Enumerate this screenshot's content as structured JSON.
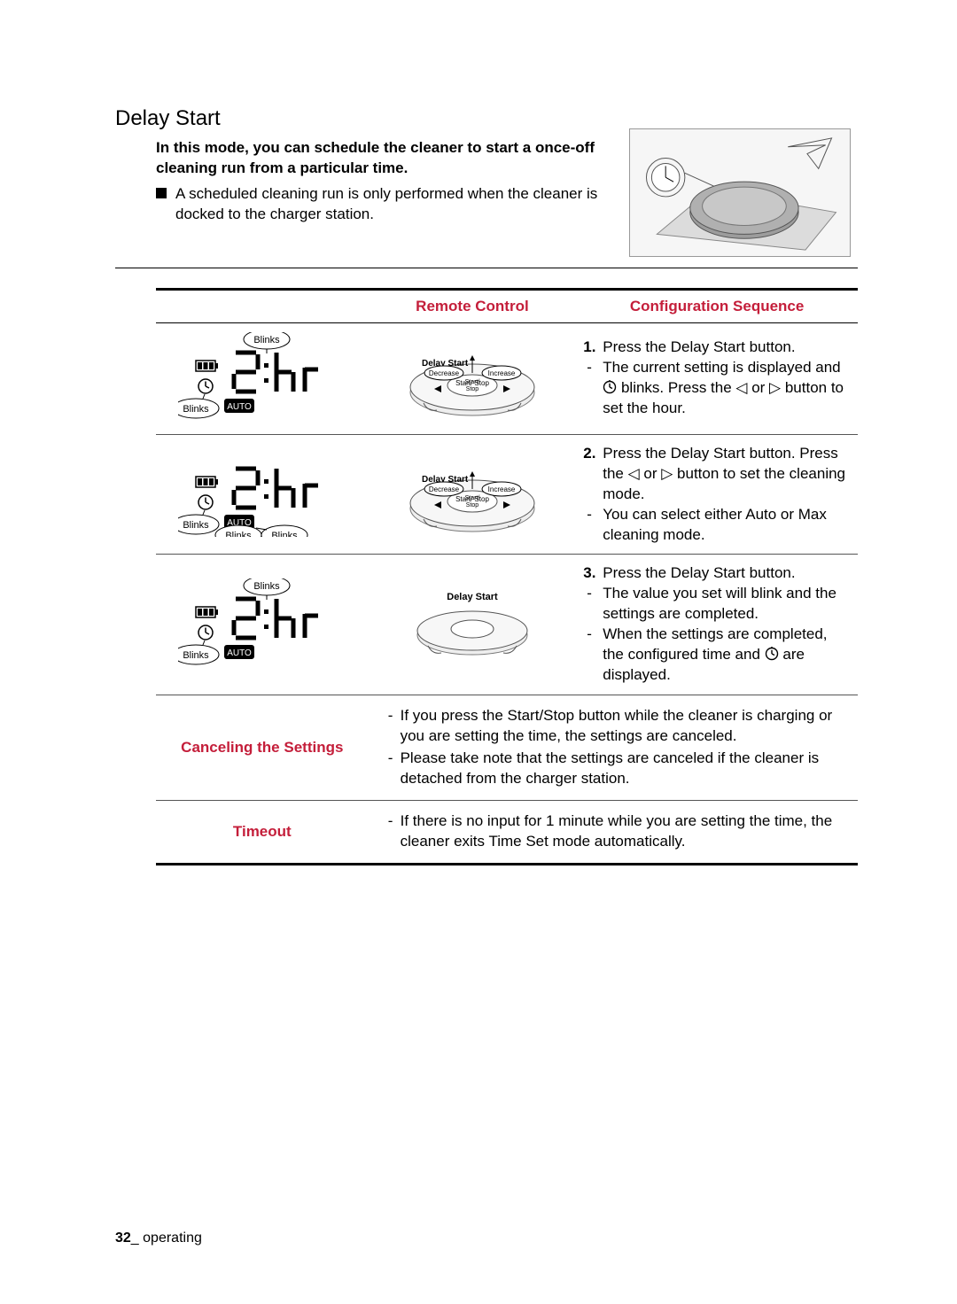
{
  "section_title": "Delay Start",
  "intro_bold": "In this mode, you can schedule the cleaner to start a once-off cleaning run from a particular time.",
  "intro_bullet": "A scheduled cleaning run is only performed when the cleaner is docked to the charger station.",
  "headers": {
    "blank": "",
    "remote": "Remote Control",
    "config": "Configuration Sequence"
  },
  "rows": [
    {
      "display": {
        "hr_blinks": true,
        "mode_blinks": false,
        "clock_blinks": true,
        "digits": "2:hr",
        "mode_label": "AUTO"
      },
      "remote": {
        "type": "full",
        "labels": {
          "ds": "Delay Start",
          "dec": "Decrease",
          "inc": "Increase",
          "ss": "Start/\nStop"
        }
      },
      "config": [
        {
          "kind": "num",
          "n": "1.",
          "text": "Press the Delay Start button."
        },
        {
          "kind": "dash",
          "text_pre": "The current setting is displayed and ",
          "icon": "clock",
          "text_post": " blinks. Press the ◁ or ▷ button to set the hour."
        }
      ]
    },
    {
      "display": {
        "hr_blinks": false,
        "mode_blinks": true,
        "clock_blinks": true,
        "digits": "2:hr",
        "mode_label": "AUTO",
        "extra_blinks_right": true
      },
      "remote": {
        "type": "full",
        "labels": {
          "ds": "Delay Start",
          "dec": "Decrease",
          "inc": "Increase",
          "ss": "Start/\nStop"
        }
      },
      "config": [
        {
          "kind": "num",
          "n": "2.",
          "text": "Press the Delay Start button. Press the ◁ or ▷ button to set the cleaning mode."
        },
        {
          "kind": "dash",
          "text": "You can select either Auto or Max cleaning mode."
        }
      ]
    },
    {
      "display": {
        "hr_blinks": true,
        "mode_blinks": false,
        "clock_blinks": true,
        "digits": "2:hr",
        "mode_label": "AUTO"
      },
      "remote": {
        "type": "simple",
        "labels": {
          "ds": "Delay Start"
        }
      },
      "config": [
        {
          "kind": "num",
          "n": "3.",
          "text": "Press the Delay Start button."
        },
        {
          "kind": "dash",
          "text": "The value you set will blink and the settings are completed."
        },
        {
          "kind": "dash",
          "text_pre": "When the settings are completed, the configured time and ",
          "icon": "clock",
          "text_post": " are displayed."
        }
      ]
    }
  ],
  "cancel": {
    "label": "Canceling the Settings",
    "lines": [
      "If you press the Start/Stop button while the cleaner is charging or you are setting the time, the settings are canceled.",
      "Please take note that the settings are canceled if the cleaner is detached from the charger station."
    ]
  },
  "timeout": {
    "label": "Timeout",
    "lines": [
      "If there is no input for 1 minute while you are setting the time, the cleaner exits Time Set mode automatically."
    ]
  },
  "footer": {
    "page": "32",
    "sep": "_",
    "label": " operating"
  },
  "colors": {
    "accent": "#c41e3a",
    "text": "#000000",
    "border": "#000000"
  },
  "blinks_label": "Blinks"
}
